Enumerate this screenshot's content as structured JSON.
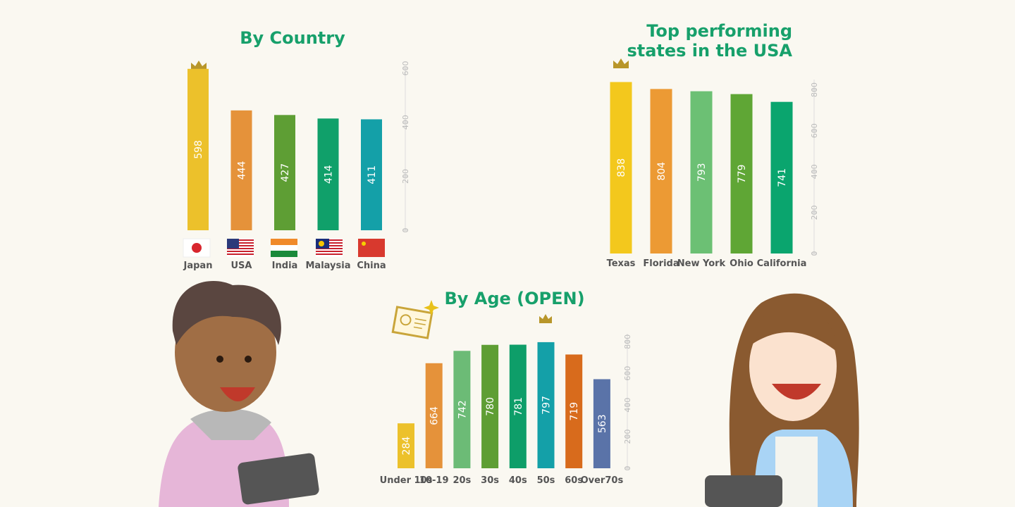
{
  "chart_data": [
    {
      "type": "bar",
      "title": "By Country",
      "categories": [
        "Japan",
        "USA",
        "India",
        "Malaysia",
        "China"
      ],
      "values": [
        598,
        444,
        427,
        414,
        411
      ],
      "colors": [
        "#ecc12b",
        "#e5923a",
        "#5e9e34",
        "#10a06a",
        "#14a0a8"
      ],
      "ylim": [
        0,
        600
      ],
      "yticks": [
        0,
        200,
        400,
        600
      ]
    },
    {
      "type": "bar",
      "title": "Top performing states in the USA",
      "categories": [
        "Texas",
        "Florida",
        "New York",
        "Ohio",
        "California"
      ],
      "values": [
        838,
        804,
        793,
        779,
        741
      ],
      "colors": [
        "#f3c81d",
        "#ec9a34",
        "#6cc074",
        "#5fa635",
        "#0aa56e"
      ],
      "ylim": [
        0,
        850
      ],
      "yticks": [
        0,
        200,
        400,
        600,
        800
      ]
    },
    {
      "type": "bar",
      "title": "By Age (OPEN)",
      "categories": [
        "Under 10s",
        "10-19",
        "20s",
        "30s",
        "40s",
        "50s",
        "60s",
        "Over70s"
      ],
      "values": [
        284,
        664,
        742,
        780,
        781,
        797,
        719,
        563
      ],
      "colors": [
        "#ecc12b",
        "#e5923a",
        "#6cbb76",
        "#5e9e34",
        "#0e9e69",
        "#14a0a8",
        "#d86b1c",
        "#5a73a8"
      ],
      "ylim": [
        0,
        850
      ],
      "yticks": [
        0,
        200,
        400,
        600,
        800
      ]
    }
  ]
}
